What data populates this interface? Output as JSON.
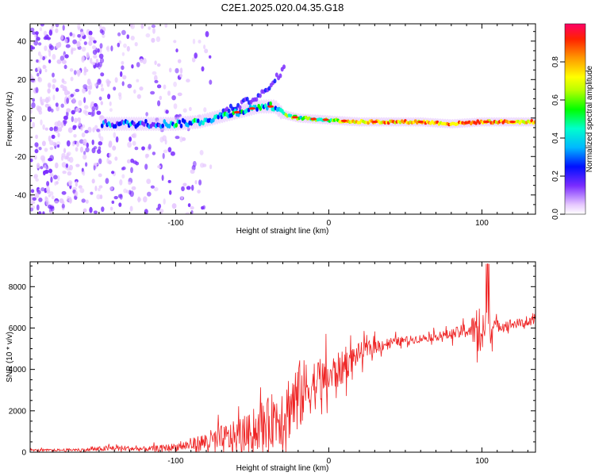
{
  "title": "C2E1.2025.020.04.35.G18",
  "chart_data": [
    {
      "type": "heatmap",
      "description_note": "",
      "xlabel": "Height of straight line (km)",
      "ylabel": "Frequency (Hz)",
      "xlim": [
        -195,
        135
      ],
      "ylim": [
        -50,
        49
      ],
      "xticks": [
        -100,
        0,
        100
      ],
      "yticks": [
        -40,
        -20,
        0,
        20,
        40
      ],
      "xtick_labels": [
        "-100",
        "0",
        "100"
      ],
      "ytick_labels": [
        "-40",
        "-20",
        "0",
        "20",
        "40"
      ],
      "colorbar": {
        "label": "Normalized spectral amplitude",
        "range": [
          0,
          1
        ],
        "ticks": [
          0.0,
          0.2,
          0.4,
          0.6,
          0.8
        ],
        "tick_labels": [
          "0.0",
          "0.2",
          "0.4",
          "0.6",
          "0.8"
        ],
        "colormap": [
          "#ffffff",
          "#e6c8ff",
          "#7a2cff",
          "#0010ff",
          "#00b8ff",
          "#00ffcc",
          "#00ff00",
          "#b8ff00",
          "#ffff00",
          "#ff9900",
          "#ff2200",
          "#ff0066"
        ]
      },
      "main_line": {
        "points": [
          [
            -145,
            -3
          ],
          [
            -120,
            -3
          ],
          [
            -100,
            -3
          ],
          [
            -85,
            -2
          ],
          [
            -75,
            0
          ],
          [
            -65,
            2
          ],
          [
            -55,
            4
          ],
          [
            -45,
            6
          ],
          [
            -35,
            6
          ],
          [
            -30,
            2
          ],
          [
            -20,
            0
          ],
          [
            0,
            -1
          ],
          [
            20,
            -2
          ],
          [
            60,
            -2
          ],
          [
            80,
            -3
          ],
          [
            100,
            -2
          ],
          [
            135,
            -2
          ]
        ]
      },
      "upper_branch": {
        "points": [
          [
            -70,
            3
          ],
          [
            -60,
            6
          ],
          [
            -50,
            10
          ],
          [
            -40,
            14
          ],
          [
            -35,
            20
          ],
          [
            -28,
            27
          ]
        ]
      }
    },
    {
      "type": "line",
      "xlabel": "Height of straight line (km)",
      "ylabel": "SNR (10 * v/v)",
      "xlim": [
        -195,
        135
      ],
      "ylim": [
        0,
        9200
      ],
      "xticks": [
        -100,
        0,
        100
      ],
      "yticks": [
        0,
        2000,
        4000,
        6000,
        8000
      ],
      "xtick_labels": [
        "-100",
        "0",
        "100"
      ],
      "ytick_labels": [
        "0",
        "2000",
        "4000",
        "6000",
        "8000"
      ],
      "series": [
        {
          "color": "#ee2222",
          "x": [
            -195,
            -180,
            -160,
            -150,
            -140,
            -120,
            -110,
            -100,
            -90,
            -80,
            -70,
            -60,
            -50,
            -40,
            -30,
            -25,
            -20,
            -15,
            -10,
            -5,
            0,
            5,
            10,
            15,
            20,
            30,
            40,
            50,
            60,
            70,
            80,
            85,
            90,
            95,
            100,
            102,
            104,
            106,
            110,
            120,
            135
          ],
          "y": [
            100,
            100,
            120,
            150,
            200,
            150,
            200,
            250,
            350,
            500,
            600,
            750,
            1000,
            1400,
            1900,
            2300,
            2700,
            3000,
            3300,
            3400,
            3600,
            3900,
            4100,
            4500,
            4800,
            5100,
            5300,
            5400,
            5500,
            5600,
            5700,
            5800,
            5900,
            5900,
            6000,
            6000,
            6000,
            6000,
            6100,
            6200,
            6300
          ]
        }
      ],
      "noise_amplitude": [
        50,
        50,
        80,
        120,
        150,
        120,
        150,
        200,
        300,
        500,
        700,
        800,
        900,
        1200,
        1600,
        1700,
        1800,
        1500,
        1300,
        1100,
        1000,
        900,
        800,
        600,
        500,
        350,
        250,
        200,
        200,
        200,
        250,
        300,
        400,
        800,
        2000,
        2500,
        1500,
        600,
        300,
        250,
        200
      ]
    }
  ]
}
